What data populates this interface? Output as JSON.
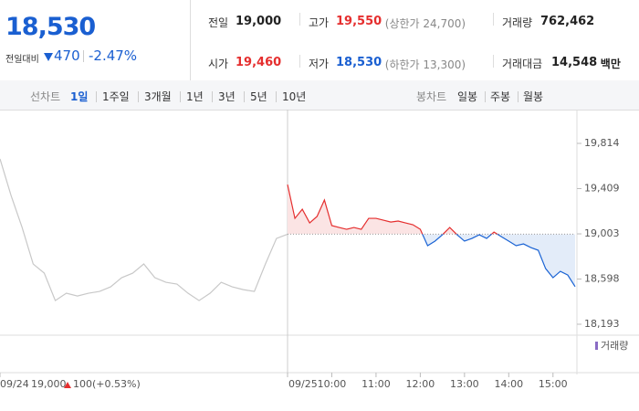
{
  "quote": {
    "price": "18,530",
    "change_label": "전일대비",
    "change": "470",
    "change_rate": "-2.47%"
  },
  "stats": [
    [
      {
        "label": "전일",
        "value": "19,000",
        "color": "#222"
      },
      {
        "label": "시가",
        "value": "19,460",
        "color": "#e52e2e"
      }
    ],
    [
      {
        "label": "고가",
        "value": "19,550",
        "color": "#e52e2e",
        "note": "(상한가 24,700)"
      },
      {
        "label": "저가",
        "value": "18,530",
        "color": "#1a5fd1",
        "note": "(하한가 13,300)"
      }
    ],
    [
      {
        "label": "거래량",
        "value": "762,462",
        "color": "#222"
      },
      {
        "label": "거래대금",
        "value": "14,548",
        "color": "#222",
        "unit": "백만"
      }
    ]
  ],
  "tabs": {
    "line_label": "선차트",
    "line": [
      "1일",
      "1주일",
      "3개월",
      "1년",
      "3년",
      "5년",
      "10년"
    ],
    "active": 0,
    "candle_label": "봉차트",
    "candle": [
      "일봉",
      "주봉",
      "월봉"
    ]
  },
  "chart_data": {
    "type": "line",
    "base": 19000,
    "xlim": [
      0,
      780
    ],
    "ylim": [
      18111,
      20076
    ],
    "xticks": [
      {
        "value": 0,
        "label": "09/24"
      },
      {
        "value": 390,
        "label": "09/25"
      },
      {
        "value": 450,
        "label": "10:00"
      },
      {
        "value": 510,
        "label": "11:00"
      },
      {
        "value": 570,
        "label": "12:00"
      },
      {
        "value": 630,
        "label": "13:00"
      },
      {
        "value": 690,
        "label": "14:00"
      },
      {
        "value": 750,
        "label": "15:00"
      }
    ],
    "yticks": [
      {
        "value": 19814,
        "label": "19,814"
      },
      {
        "value": 19409,
        "label": "19,409"
      },
      {
        "value": 19003,
        "label": "19,003"
      },
      {
        "value": 18598,
        "label": "18,598"
      },
      {
        "value": 18193,
        "label": "18,193"
      }
    ],
    "series": [
      {
        "color": "#c8c8c8",
        "x": [
          0,
          15,
          30,
          45,
          60,
          75,
          90,
          105,
          120,
          135,
          150,
          165,
          180,
          195,
          210,
          225,
          240,
          255,
          270,
          285,
          300,
          315,
          330,
          345,
          360,
          375,
          390
        ],
        "values": [
          19675,
          19347,
          19060,
          18733,
          18651,
          18405,
          18471,
          18446,
          18471,
          18487,
          18528,
          18610,
          18651,
          18733,
          18610,
          18569,
          18553,
          18471,
          18405,
          18471,
          18569,
          18528,
          18503,
          18487,
          18733,
          18962,
          19000
        ]
      },
      {
        "color": "#e52e2e",
        "color_down": "#1a63d4",
        "x": [
          390,
          400,
          410,
          420,
          430,
          440,
          450,
          460,
          470,
          480,
          490,
          500,
          510,
          520,
          530,
          540,
          550,
          560,
          570,
          580,
          590,
          600,
          610,
          620,
          630,
          640,
          650,
          660,
          670,
          680,
          690,
          700,
          710,
          720,
          730,
          740,
          750,
          760,
          770,
          780
        ],
        "values": [
          19445,
          19142,
          19224,
          19101,
          19159,
          19306,
          19077,
          19060,
          19044,
          19060,
          19044,
          19142,
          19142,
          19126,
          19109,
          19118,
          19101,
          19085,
          19044,
          18897,
          18938,
          18995,
          19060,
          18995,
          18938,
          18962,
          18995,
          18962,
          19019,
          18978,
          18938,
          18897,
          18913,
          18880,
          18856,
          18692,
          18610,
          18667,
          18634,
          18530
        ]
      }
    ],
    "volume_label": "거래량",
    "prev_close": "19,000",
    "prev_change": "100",
    "prev_change_rate": "(+0.53%)"
  }
}
